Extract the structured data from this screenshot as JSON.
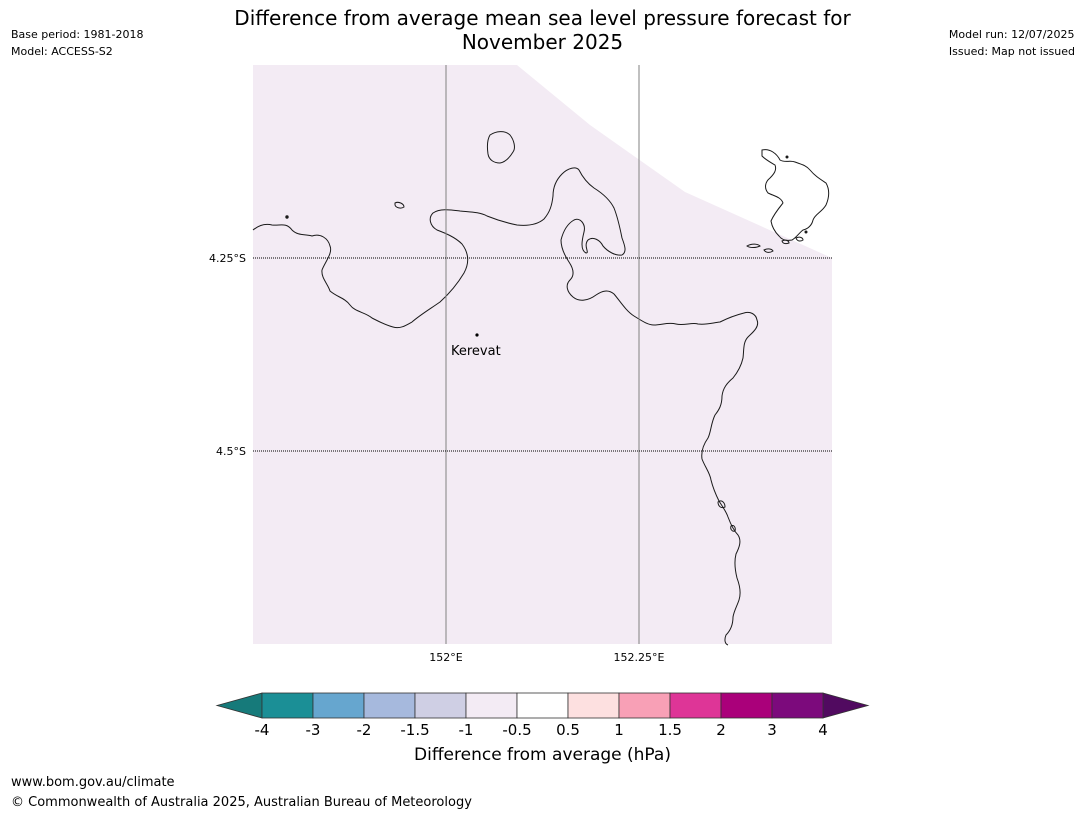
{
  "header": {
    "title_line1": "Difference from average mean sea level pressure forecast for",
    "title_line2": "November 2025",
    "base_period": "Base period: 1981-2018",
    "model": "Model: ACCESS-S2",
    "model_run": "Model run: 12/07/2025",
    "issued": "Issued: Map not issued"
  },
  "map": {
    "place_label": "Kerevat",
    "lat_labels": [
      "4.25°S",
      "4.5°S"
    ],
    "lon_labels": [
      "152°E",
      "152.25°E"
    ],
    "fill_color": "#f3ebf4",
    "fill_meaning": "-0.5 to -1 hPa band (light lavender)"
  },
  "colorbar": {
    "title": "Difference from average (hPa)",
    "tick_labels": [
      "-4",
      "-3",
      "-2",
      "-1.5",
      "-1",
      "-0.5",
      "0.5",
      "1",
      "1.5",
      "2",
      "3",
      "4"
    ],
    "colors": [
      "#167a7a",
      "#1b8f96",
      "#66a6cf",
      "#a6b9dd",
      "#cfcfe4",
      "#f3ebf4",
      "#ffffff",
      "#fde0e0",
      "#f8a0b6",
      "#de3597",
      "#aa007a",
      "#7c0a7c",
      "#510a60"
    ]
  },
  "footer": {
    "url": "www.bom.gov.au/climate",
    "copyright": "© Commonwealth of Australia 2025, Australian Bureau of Meteorology"
  }
}
